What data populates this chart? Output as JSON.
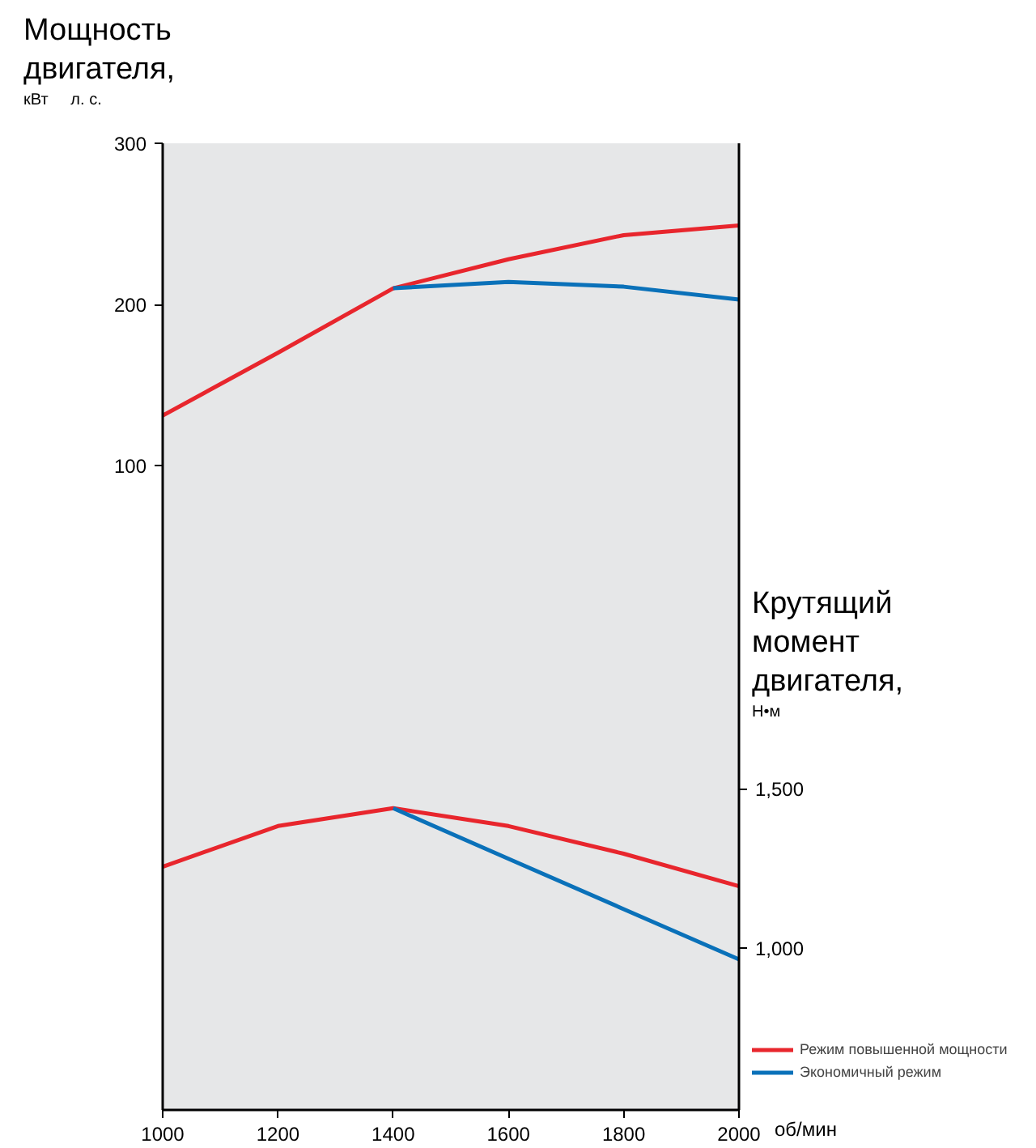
{
  "chart_data": {
    "type": "line",
    "ylabel": "Мощность\nдвигателя,\nкВт     л. с.",
    "y2label": "Крутящий\nмомент\nдвигателя,\nН•м",
    "xlabel": "об/мин",
    "x": [
      1000,
      1200,
      1400,
      1600,
      1800,
      2000
    ],
    "xlim": [
      1000,
      2000
    ],
    "xticks": [
      1000,
      1200,
      1400,
      1600,
      1800,
      2000
    ],
    "ylim": [
      -300,
      300
    ],
    "yticks": [
      100,
      200,
      300
    ],
    "y2lim": [
      491,
      3528
    ],
    "y2ticks": [
      {
        "value": 1000,
        "label": "1,000"
      },
      {
        "value": 1500,
        "label": "1,500"
      }
    ],
    "series": [
      {
        "name": "Режим повышенной мощности",
        "color": "#e8262d",
        "values": [
          131,
          170,
          210,
          228,
          243,
          249
        ]
      },
      {
        "name": "Экономичный режим",
        "color": "#0a71b9",
        "values": [
          null,
          null,
          210,
          214,
          211,
          203
        ]
      },
      {
        "color": "#e8262d",
        "axis": "y2",
        "values": [
          1255,
          1383,
          1439,
          1383,
          1296,
          1194
        ]
      },
      {
        "color": "#0a71b9",
        "axis": "y2",
        "values": [
          null,
          null,
          1439,
          1280,
          1122,
          964
        ]
      }
    ],
    "grid": false,
    "legend": "bottom right"
  }
}
